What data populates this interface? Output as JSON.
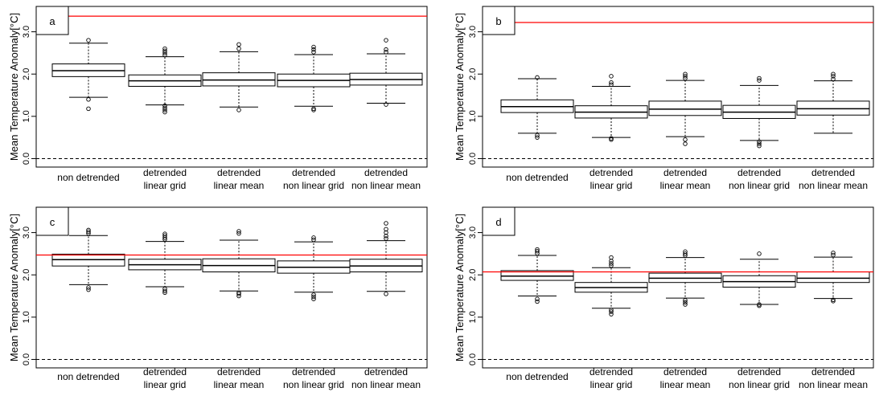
{
  "figure": {
    "ylabel": "Mean Temperature Anomaly[°C]"
  },
  "chart_data": [
    {
      "type": "box",
      "panel_label": "a",
      "ylabel": "Mean Temperature Anomaly[°C]",
      "ylim": [
        -0.2,
        3.6
      ],
      "yticks": [
        "0.0",
        "1.0",
        "2.0",
        "3.0"
      ],
      "grid": false,
      "reference_line": {
        "value": 3.37,
        "color": "#ff0000"
      },
      "zero_line": {
        "value": 0.0,
        "style": "dashed"
      },
      "categories": [
        [
          "non detrended"
        ],
        [
          "detrended",
          "linear grid"
        ],
        [
          "detrended",
          "linear mean"
        ],
        [
          "detrended",
          "non linear grid"
        ],
        [
          "detrended",
          "non linear mean"
        ]
      ],
      "boxes": [
        {
          "whisker_low": 1.45,
          "q1": 1.94,
          "median": 2.08,
          "q3": 2.24,
          "whisker_high": 2.73,
          "outliers": [
            1.18,
            1.4,
            2.8
          ]
        },
        {
          "whisker_low": 1.27,
          "q1": 1.71,
          "median": 1.84,
          "q3": 1.98,
          "whisker_high": 2.41,
          "outliers": [
            1.1,
            1.15,
            1.2,
            1.25,
            2.45,
            2.5,
            2.55,
            2.6
          ]
        },
        {
          "whisker_low": 1.22,
          "q1": 1.72,
          "median": 1.86,
          "q3": 2.03,
          "whisker_high": 2.53,
          "outliers": [
            1.15,
            2.6,
            2.7
          ]
        },
        {
          "whisker_low": 1.24,
          "q1": 1.7,
          "median": 1.85,
          "q3": 2.0,
          "whisker_high": 2.46,
          "outliers": [
            1.15,
            1.18,
            2.52,
            2.58,
            2.64
          ]
        },
        {
          "whisker_low": 1.31,
          "q1": 1.74,
          "median": 1.87,
          "q3": 2.02,
          "whisker_high": 2.48,
          "outliers": [
            1.28,
            2.52,
            2.58,
            2.8
          ]
        }
      ]
    },
    {
      "type": "box",
      "panel_label": "b",
      "ylabel": "Mean Temperature Anomaly[°C]",
      "ylim": [
        -0.2,
        3.6
      ],
      "yticks": [
        "0.0",
        "1.0",
        "2.0",
        "3.0"
      ],
      "grid": false,
      "reference_line": {
        "value": 3.22,
        "color": "#ff0000"
      },
      "zero_line": {
        "value": 0.0,
        "style": "dashed"
      },
      "categories": [
        [
          "non detrended"
        ],
        [
          "detrended",
          "linear grid"
        ],
        [
          "detrended",
          "linear mean"
        ],
        [
          "detrended",
          "non linear grid"
        ],
        [
          "detrended",
          "non linear mean"
        ]
      ],
      "boxes": [
        {
          "whisker_low": 0.6,
          "q1": 1.09,
          "median": 1.23,
          "q3": 1.39,
          "whisker_high": 1.89,
          "outliers": [
            0.5,
            0.55,
            1.92
          ]
        },
        {
          "whisker_low": 0.5,
          "q1": 0.96,
          "median": 1.1,
          "q3": 1.25,
          "whisker_high": 1.71,
          "outliers": [
            0.45,
            0.48,
            1.75,
            1.8,
            1.95
          ]
        },
        {
          "whisker_low": 0.52,
          "q1": 1.02,
          "median": 1.17,
          "q3": 1.36,
          "whisker_high": 1.85,
          "outliers": [
            0.35,
            0.45,
            1.9,
            1.95,
            2.0
          ]
        },
        {
          "whisker_low": 0.43,
          "q1": 0.95,
          "median": 1.1,
          "q3": 1.26,
          "whisker_high": 1.73,
          "outliers": [
            0.3,
            0.35,
            0.4,
            1.85,
            1.9
          ]
        },
        {
          "whisker_low": 0.6,
          "q1": 1.03,
          "median": 1.18,
          "q3": 1.36,
          "whisker_high": 1.84,
          "outliers": [
            1.88,
            1.95,
            2.0
          ]
        }
      ]
    },
    {
      "type": "box",
      "panel_label": "c",
      "ylabel": "Mean Temperature Anomaly[°C]",
      "ylim": [
        -0.2,
        3.6
      ],
      "yticks": [
        "0.0",
        "1.0",
        "2.0",
        "3.0"
      ],
      "grid": false,
      "reference_line": {
        "value": 2.47,
        "color": "#ff0000"
      },
      "zero_line": {
        "value": 0.0,
        "style": "dashed"
      },
      "categories": [
        [
          "non detrended"
        ],
        [
          "detrended",
          "linear grid"
        ],
        [
          "detrended",
          "linear mean"
        ],
        [
          "detrended",
          "non linear grid"
        ],
        [
          "detrended",
          "non linear mean"
        ]
      ],
      "boxes": [
        {
          "whisker_low": 1.77,
          "q1": 2.21,
          "median": 2.36,
          "q3": 2.49,
          "whisker_high": 2.93,
          "outliers": [
            1.65,
            1.7,
            2.98,
            3.02,
            3.06
          ]
        },
        {
          "whisker_low": 1.72,
          "q1": 2.12,
          "median": 2.24,
          "q3": 2.37,
          "whisker_high": 2.79,
          "outliers": [
            1.58,
            1.62,
            1.67,
            2.84,
            2.88,
            2.93,
            2.97
          ]
        },
        {
          "whisker_low": 1.62,
          "q1": 2.07,
          "median": 2.22,
          "q3": 2.38,
          "whisker_high": 2.82,
          "outliers": [
            1.5,
            1.55,
            1.58,
            2.98,
            3.03
          ]
        },
        {
          "whisker_low": 1.59,
          "q1": 2.04,
          "median": 2.18,
          "q3": 2.33,
          "whisker_high": 2.78,
          "outliers": [
            1.43,
            1.48,
            1.53,
            2.83,
            2.88
          ]
        },
        {
          "whisker_low": 1.61,
          "q1": 2.07,
          "median": 2.21,
          "q3": 2.37,
          "whisker_high": 2.81,
          "outliers": [
            1.55,
            2.86,
            2.92,
            3.0,
            3.08,
            3.22
          ]
        }
      ]
    },
    {
      "type": "box",
      "panel_label": "d",
      "ylabel": "Mean Temperature Anomaly[°C]",
      "ylim": [
        -0.2,
        3.6
      ],
      "yticks": [
        "0.0",
        "1.0",
        "2.0",
        "3.0"
      ],
      "grid": false,
      "reference_line": {
        "value": 2.07,
        "color": "#ff0000"
      },
      "zero_line": {
        "value": 0.0,
        "style": "dashed"
      },
      "categories": [
        [
          "non detrended"
        ],
        [
          "detrended",
          "linear grid"
        ],
        [
          "detrended",
          "linear mean"
        ],
        [
          "detrended",
          "non linear grid"
        ],
        [
          "detrended",
          "non linear mean"
        ]
      ],
      "boxes": [
        {
          "whisker_low": 1.5,
          "q1": 1.87,
          "median": 1.97,
          "q3": 2.1,
          "whisker_high": 2.46,
          "outliers": [
            1.37,
            1.43,
            2.51,
            2.56,
            2.6
          ]
        },
        {
          "whisker_low": 1.21,
          "q1": 1.59,
          "median": 1.7,
          "q3": 1.82,
          "whisker_high": 2.17,
          "outliers": [
            1.07,
            1.13,
            1.17,
            2.22,
            2.27,
            2.33,
            2.41
          ]
        },
        {
          "whisker_low": 1.45,
          "q1": 1.82,
          "median": 1.92,
          "q3": 2.04,
          "whisker_high": 2.41,
          "outliers": [
            1.3,
            1.35,
            1.4,
            2.46,
            2.5,
            2.55
          ]
        },
        {
          "whisker_low": 1.3,
          "q1": 1.71,
          "median": 1.84,
          "q3": 1.98,
          "whisker_high": 2.37,
          "outliers": [
            1.27,
            1.3,
            2.5
          ]
        },
        {
          "whisker_low": 1.44,
          "q1": 1.82,
          "median": 1.92,
          "q3": 2.07,
          "whisker_high": 2.42,
          "outliers": [
            1.38,
            1.41,
            2.47,
            2.52
          ]
        }
      ]
    }
  ]
}
